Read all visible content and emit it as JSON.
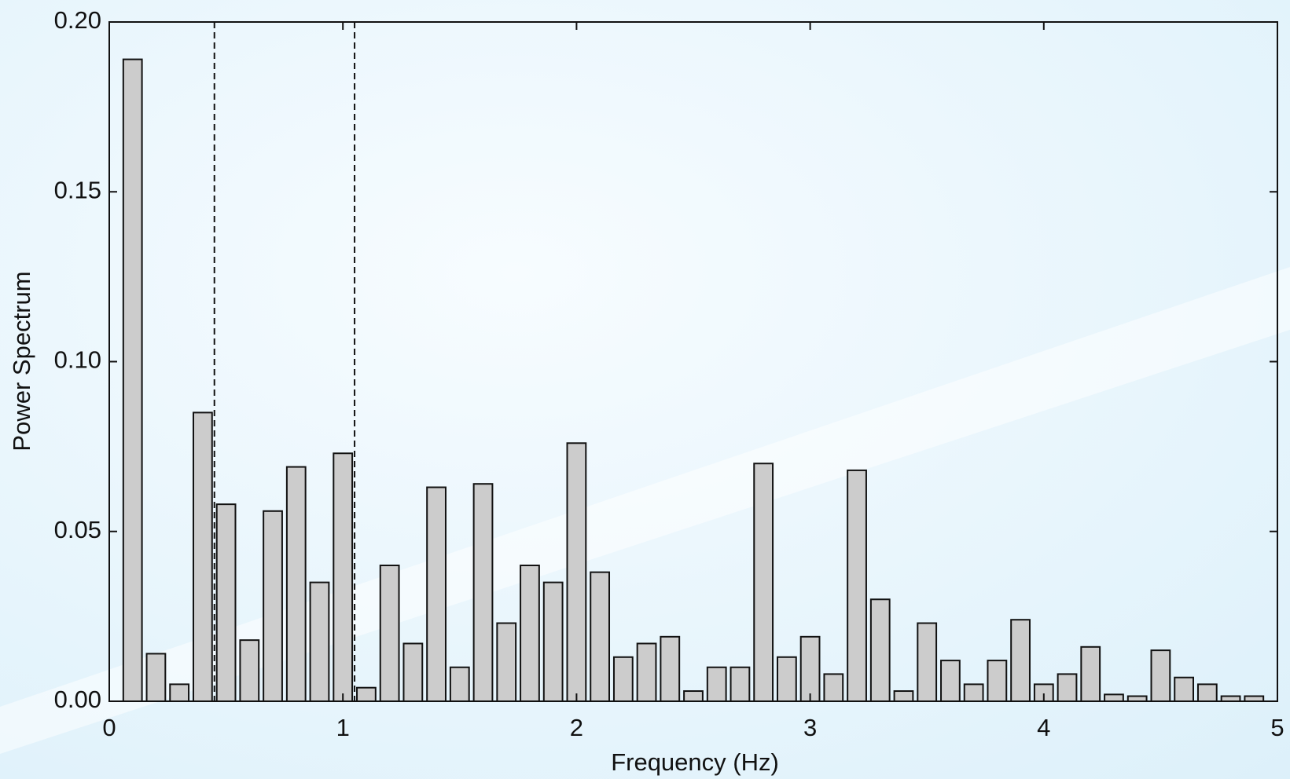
{
  "chart_data": {
    "type": "bar",
    "xlabel": "Frequency (Hz)",
    "ylabel": "Power Spectrum",
    "x": [
      0.1,
      0.2,
      0.3,
      0.4,
      0.5,
      0.6,
      0.7,
      0.8,
      0.9,
      1.0,
      1.1,
      1.2,
      1.3,
      1.4,
      1.5,
      1.6,
      1.7,
      1.8,
      1.9,
      2.0,
      2.1,
      2.2,
      2.3,
      2.4,
      2.5,
      2.6,
      2.7,
      2.8,
      2.9,
      3.0,
      3.1,
      3.2,
      3.3,
      3.4,
      3.5,
      3.6,
      3.7,
      3.8,
      3.9,
      4.0,
      4.1,
      4.2,
      4.3,
      4.4,
      4.5,
      4.6,
      4.7,
      4.8,
      4.9
    ],
    "values": [
      0.189,
      0.014,
      0.005,
      0.085,
      0.058,
      0.018,
      0.056,
      0.069,
      0.035,
      0.073,
      0.004,
      0.04,
      0.017,
      0.063,
      0.01,
      0.064,
      0.023,
      0.04,
      0.035,
      0.076,
      0.038,
      0.013,
      0.017,
      0.019,
      0.003,
      0.01,
      0.01,
      0.07,
      0.013,
      0.019,
      0.008,
      0.068,
      0.03,
      0.003,
      0.023,
      0.012,
      0.005,
      0.012,
      0.024,
      0.005,
      0.008,
      0.016,
      0.002,
      0.0015,
      0.015,
      0.007,
      0.005,
      0.0015,
      0.0015
    ],
    "bar_width": 0.08,
    "color": "#cccccc",
    "vlines": [
      0.45,
      1.05
    ],
    "xlim": [
      0,
      5
    ],
    "xticks": [
      0,
      1,
      2,
      3,
      4,
      5
    ],
    "ylim": [
      0,
      0.2
    ],
    "yticks": [
      {
        "value": 0,
        "label": "0.00"
      },
      0.05,
      {
        "value": 0.1,
        "label": "0.10"
      },
      0.15,
      {
        "value": 0.2,
        "label": "0.20"
      }
    ],
    "grid": false
  }
}
